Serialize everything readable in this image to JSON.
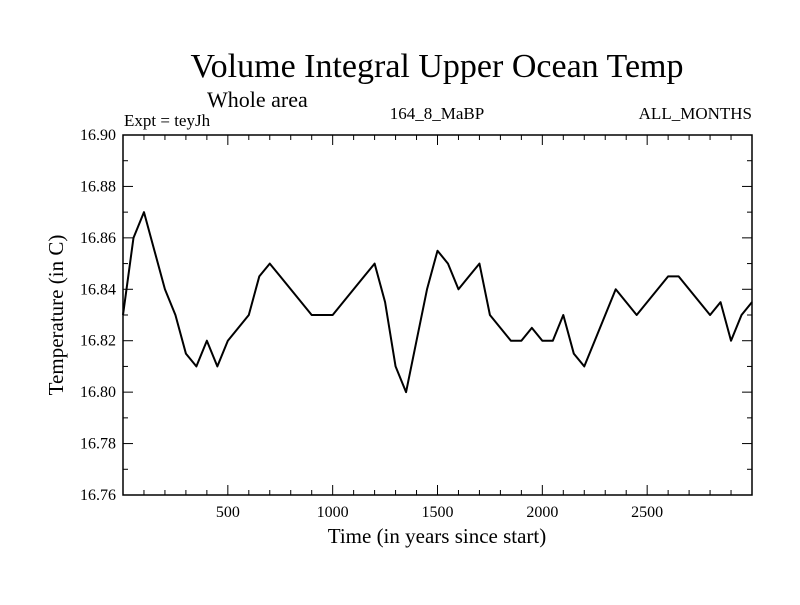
{
  "chart_data": {
    "type": "line",
    "title": "Volume Integral Upper Ocean Temp",
    "subtitle": "Whole area",
    "expt_label": "Expt = teyJh",
    "run_label": "164_8_MaBP",
    "period_label": "ALL_MONTHS",
    "xlabel": "Time (in years since start)",
    "ylabel": "Temperature (in C)",
    "xlim": [
      0,
      3000
    ],
    "ylim": [
      16.76,
      16.9
    ],
    "x_ticks": [
      500,
      1000,
      1500,
      2000,
      2500
    ],
    "x_tick_labels": [
      "500",
      "1000",
      "1500",
      "2000",
      "2500"
    ],
    "y_ticks": [
      16.76,
      16.78,
      16.8,
      16.82,
      16.84,
      16.86,
      16.88,
      16.9
    ],
    "y_tick_labels": [
      "16.76",
      "16.78",
      "16.80",
      "16.82",
      "16.84",
      "16.86",
      "16.88",
      "16.90"
    ],
    "line_color": "#000000",
    "series": [
      {
        "name": "Volume integral upper ocean temperature",
        "x": [
          0,
          50,
          100,
          150,
          200,
          250,
          300,
          350,
          400,
          450,
          500,
          550,
          600,
          650,
          700,
          750,
          800,
          850,
          900,
          950,
          1000,
          1050,
          1100,
          1150,
          1200,
          1250,
          1300,
          1350,
          1400,
          1450,
          1500,
          1550,
          1600,
          1650,
          1700,
          1750,
          1800,
          1850,
          1900,
          1950,
          2000,
          2050,
          2100,
          2150,
          2200,
          2250,
          2300,
          2350,
          2400,
          2450,
          2500,
          2550,
          2600,
          2650,
          2700,
          2750,
          2800,
          2850,
          2900,
          2950,
          3000
        ],
        "y": [
          16.83,
          16.86,
          16.87,
          16.855,
          16.84,
          16.83,
          16.815,
          16.81,
          16.82,
          16.81,
          16.82,
          16.825,
          16.83,
          16.845,
          16.85,
          16.845,
          16.84,
          16.835,
          16.83,
          16.83,
          16.83,
          16.835,
          16.84,
          16.845,
          16.85,
          16.835,
          16.81,
          16.8,
          16.82,
          16.84,
          16.855,
          16.85,
          16.84,
          16.845,
          16.85,
          16.83,
          16.825,
          16.82,
          16.82,
          16.825,
          16.82,
          16.82,
          16.83,
          16.815,
          16.81,
          16.82,
          16.83,
          16.84,
          16.835,
          16.83,
          16.835,
          16.84,
          16.845,
          16.845,
          16.84,
          16.835,
          16.83,
          16.835,
          16.82,
          16.83,
          16.835
        ]
      }
    ]
  }
}
